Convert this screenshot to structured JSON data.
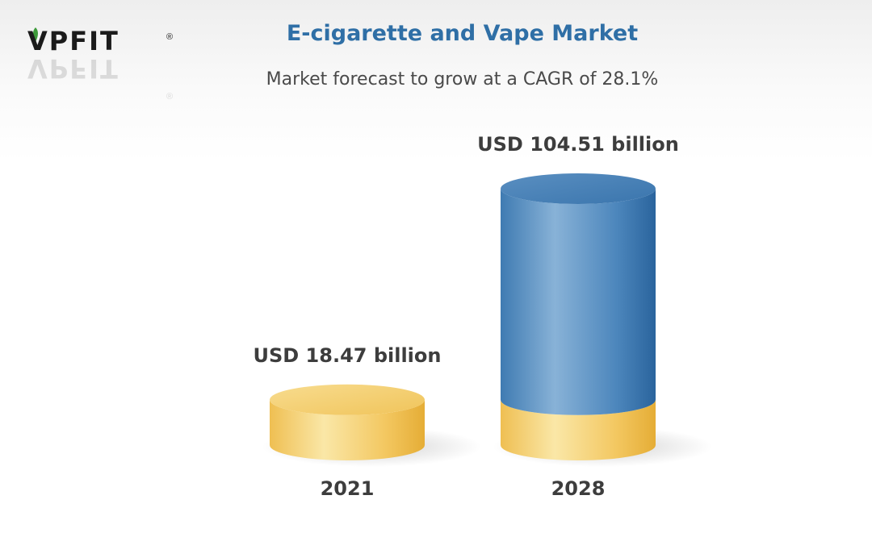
{
  "logo": {
    "brand": "VPFIT",
    "registered": "®"
  },
  "chart_data": {
    "type": "bar",
    "title": "E-cigarette and Vape Market",
    "subtitle": "Market forecast to grow at a CAGR of 28.1%",
    "categories": [
      "2021",
      "2028"
    ],
    "values": [
      18.47,
      104.51
    ],
    "value_labels": [
      "USD 18.47 billion",
      "USD 104.51 billion"
    ],
    "base_value": 18.47,
    "colors": {
      "base": "#f2c356",
      "growth": "#3f7fb8",
      "title": "#2f6fa6"
    },
    "xlabel": "",
    "ylabel": "",
    "legend": "none",
    "grid": false
  }
}
